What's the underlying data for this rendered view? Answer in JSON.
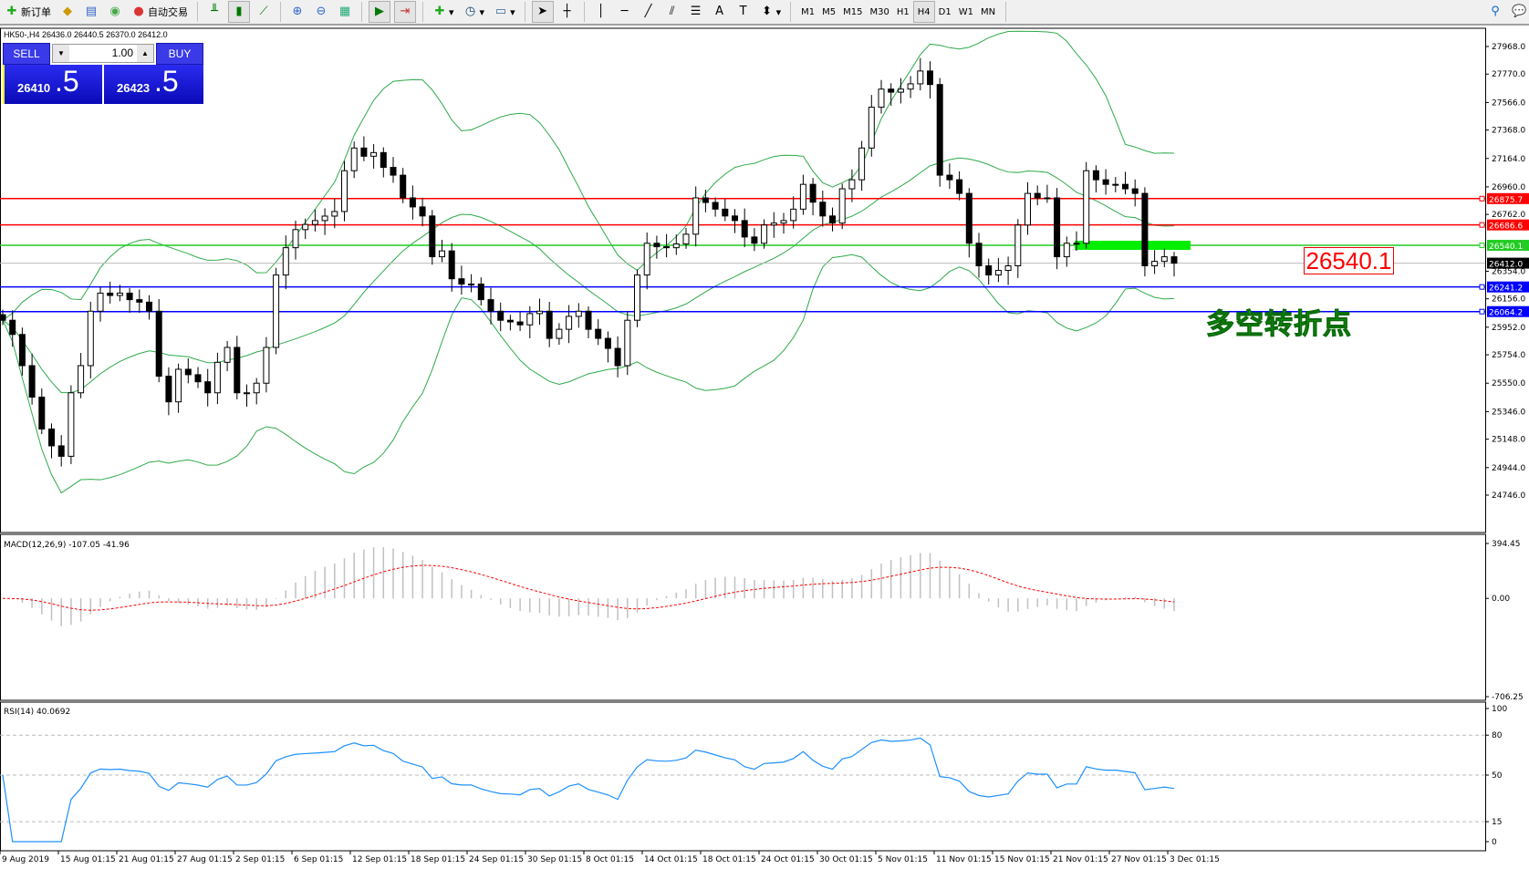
{
  "toolbar": {
    "new_order": "新订单",
    "auto_trading": "自动交易",
    "timeframes": [
      "M1",
      "M5",
      "M15",
      "M30",
      "H1",
      "H4",
      "D1",
      "W1",
      "MN"
    ],
    "active_timeframe": "H4"
  },
  "symbol_info": "HK50-,H4  26436.0 26440.5 26370.0 26412.0",
  "trade_panel": {
    "sell": "SELL",
    "buy": "BUY",
    "lot": "1.00",
    "sell_price_main": "26410",
    "sell_price_frac": ".5",
    "buy_price_main": "26423",
    "buy_price_frac": ".5"
  },
  "annotation": {
    "label": "26540.1",
    "text": "多空转折点"
  },
  "colors": {
    "bands": "#2eaa4a",
    "resistance": "#ff0000",
    "pivot": "#22cc22",
    "support": "#0000ff",
    "rsi": "#1e90ff",
    "macd_signal": "#ff0000"
  },
  "chart_data": {
    "type": "candlestick",
    "symbol": "HK50-",
    "timeframe": "H4",
    "price_ticks": [
      "27968.0",
      "27770.0",
      "27566.0",
      "27368.0",
      "27164.0",
      "26960.0",
      "26762.0",
      "26354.0",
      "26156.0",
      "25952.0",
      "25754.0",
      "25550.0",
      "25346.0",
      "25148.0",
      "24944.0",
      "24746.0"
    ],
    "ylim": [
      24746,
      27968
    ],
    "current_price": "26412.0",
    "levels": [
      {
        "value": "26875.7",
        "color": "#ff0000"
      },
      {
        "value": "26686.6",
        "color": "#ff0000"
      },
      {
        "value": "26540.1",
        "color": "#22cc22"
      },
      {
        "value": "26241.2",
        "color": "#0000ff"
      },
      {
        "value": "26064.2",
        "color": "#0000ff"
      }
    ],
    "closes": [
      26002,
      25900,
      25676,
      25450,
      25221,
      25100,
      25025,
      25481,
      25676,
      26067,
      26197,
      26180,
      26197,
      26150,
      26132,
      26067,
      25600,
      25416,
      25650,
      25611,
      25560,
      25481,
      25700,
      25807,
      25481,
      25481,
      25550,
      25807,
      26327,
      26523,
      26653,
      26690,
      26718,
      26750,
      26783,
      27076,
      27239,
      27180,
      27206,
      27100,
      27044,
      26881,
      26816,
      26751,
      26458,
      26500,
      26300,
      26262,
      26262,
      26150,
      26067,
      26002,
      25990,
      25969,
      26050,
      26067,
      25872,
      25937,
      26030,
      26067,
      25937,
      25872,
      25800,
      25676,
      26002,
      26327,
      26555,
      26530,
      26523,
      26550,
      26620,
      26881,
      26848,
      26800,
      26751,
      26718,
      26600,
      26555,
      26686,
      26700,
      26718,
      26800,
      26978,
      26850,
      26751,
      26700,
      26946,
      27011,
      27239,
      27532,
      27662,
      27640,
      27662,
      27700,
      27792,
      27695,
      27044,
      27011,
      26913,
      26555,
      26393,
      26327,
      26360,
      26393,
      26686,
      26913,
      26881,
      26881,
      26458,
      26555,
      26555,
      27076,
      27011,
      26978,
      26978,
      26946,
      26913,
      26393,
      26425,
      26458,
      26412
    ],
    "x_ticks": [
      "9 Aug 2019",
      "15 Aug 01:15",
      "21 Aug 01:15",
      "27 Aug 01:15",
      "2 Sep 01:15",
      "6 Sep 01:15",
      "12 Sep 01:15",
      "18 Sep 01:15",
      "24 Sep 01:15",
      "30 Sep 01:15",
      "8 Oct 01:15",
      "14 Oct 01:15",
      "18 Oct 01:15",
      "24 Oct 01:15",
      "30 Oct 01:15",
      "5 Nov 01:15",
      "11 Nov 01:15",
      "15 Nov 01:15",
      "21 Nov 01:15",
      "27 Nov 01:15",
      "3 Dec 01:15"
    ],
    "macd": {
      "label": "MACD(12,26,9) -107.05 -41.96",
      "ticks": [
        "394.45",
        "0.00",
        "-706.25"
      ],
      "ylim": [
        -706.25,
        394.45
      ]
    },
    "rsi": {
      "label": "RSI(14) 40.0692",
      "ticks": [
        "100",
        "80",
        "50",
        "15",
        "0"
      ],
      "levels": [
        80,
        50,
        15
      ]
    }
  }
}
